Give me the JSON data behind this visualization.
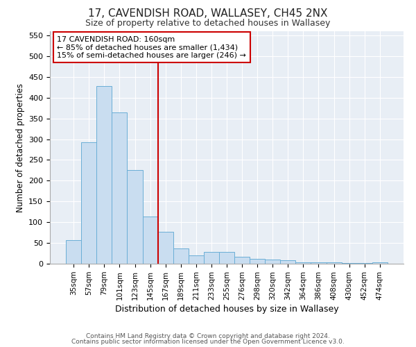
{
  "title": "17, CAVENDISH ROAD, WALLASEY, CH45 2NX",
  "subtitle": "Size of property relative to detached houses in Wallasey",
  "xlabel": "Distribution of detached houses by size in Wallasey",
  "ylabel": "Number of detached properties",
  "bar_labels": [
    "35sqm",
    "57sqm",
    "79sqm",
    "101sqm",
    "123sqm",
    "145sqm",
    "167sqm",
    "189sqm",
    "211sqm",
    "233sqm",
    "255sqm",
    "276sqm",
    "298sqm",
    "320sqm",
    "342sqm",
    "364sqm",
    "386sqm",
    "408sqm",
    "430sqm",
    "452sqm",
    "474sqm"
  ],
  "bar_values": [
    57,
    293,
    428,
    365,
    226,
    113,
    77,
    37,
    20,
    29,
    29,
    16,
    11,
    10,
    9,
    4,
    3,
    3,
    2,
    1,
    4
  ],
  "bar_color": "#c9ddf0",
  "bar_edge_color": "#6aaed6",
  "vline_x_idx": 6,
  "vline_color": "#cc0000",
  "annotation_title": "17 CAVENDISH ROAD: 160sqm",
  "annotation_line1": "← 85% of detached houses are smaller (1,434)",
  "annotation_line2": "15% of semi-detached houses are larger (246) →",
  "annotation_box_color": "#cc0000",
  "ylim": [
    0,
    560
  ],
  "yticks": [
    0,
    50,
    100,
    150,
    200,
    250,
    300,
    350,
    400,
    450,
    500,
    550
  ],
  "footer1": "Contains HM Land Registry data © Crown copyright and database right 2024.",
  "footer2": "Contains public sector information licensed under the Open Government Licence v3.0.",
  "fig_bg_color": "#ffffff",
  "plot_bg_color": "#e8eef5",
  "grid_color": "#ffffff",
  "title_fontsize": 11,
  "subtitle_fontsize": 9
}
